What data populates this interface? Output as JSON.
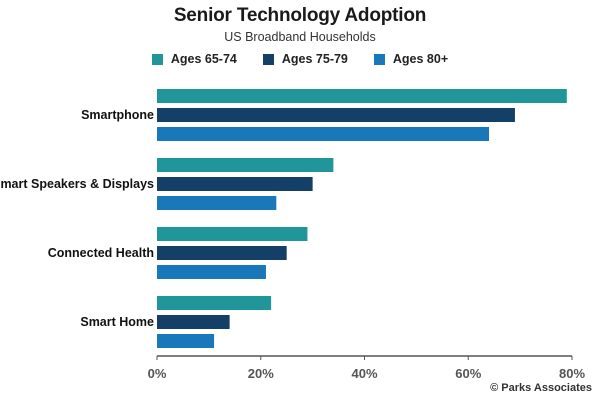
{
  "chart_data": {
    "type": "bar",
    "orientation": "horizontal",
    "title": "Senior Technology Adoption",
    "subtitle": "US Broadband Households",
    "categories": [
      "Smartphone",
      "Smart Speakers & Displays",
      "Connected Health",
      "Smart Home"
    ],
    "series": [
      {
        "name": "Ages 65-74",
        "color": "#21969a",
        "values": [
          79,
          34,
          29,
          22
        ]
      },
      {
        "name": "Ages 75-79",
        "color": "#143f66",
        "values": [
          69,
          30,
          25,
          14
        ]
      },
      {
        "name": "Ages 80+",
        "color": "#1878ba",
        "values": [
          64,
          23,
          21,
          11
        ]
      }
    ],
    "xlim": [
      0,
      80
    ],
    "xticks": [
      "0%",
      "20%",
      "40%",
      "60%",
      "80%"
    ],
    "grid": false,
    "legend": "top"
  },
  "source": "© Parks Associates"
}
